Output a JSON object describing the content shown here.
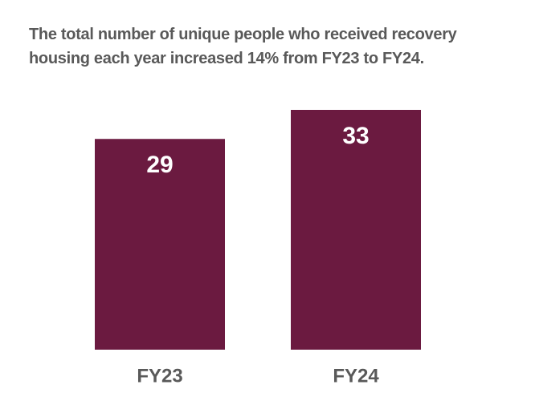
{
  "chart_data": {
    "type": "bar",
    "title": "The total number of unique people who received recovery housing each year increased 14% from FY23 to FY24.",
    "categories": [
      "FY23",
      "FY24"
    ],
    "values": [
      29,
      33
    ],
    "color": "#6b1a40"
  }
}
